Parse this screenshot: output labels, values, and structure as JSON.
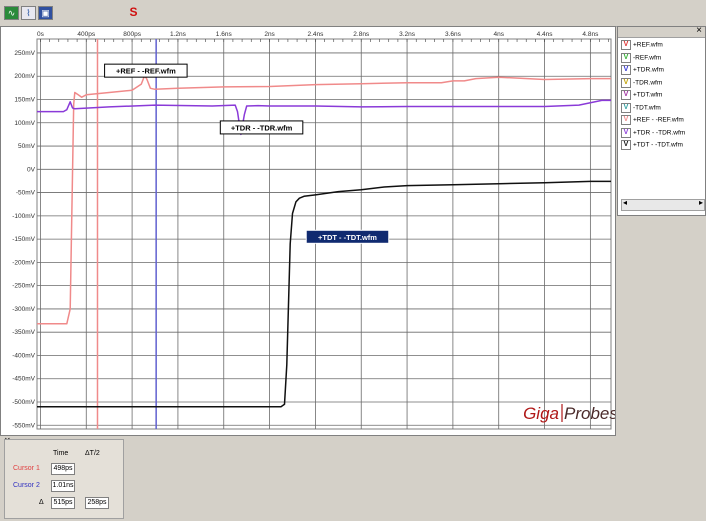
{
  "toolbar": {
    "icons": [
      "waveform-icon",
      "timebase-icon",
      "display-icon"
    ],
    "s_label": "S"
  },
  "chart_data": {
    "type": "line",
    "x_unit": "ps",
    "xlim": [
      -30,
      4980
    ],
    "ylim": [
      -558,
      280
    ],
    "x_ticks": [
      {
        "v": 0,
        "label": "0s"
      },
      {
        "v": 400,
        "label": "400ps"
      },
      {
        "v": 800,
        "label": "800ps"
      },
      {
        "v": 1200,
        "label": "1.2ns"
      },
      {
        "v": 1600,
        "label": "1.6ns"
      },
      {
        "v": 2000,
        "label": "2ns"
      },
      {
        "v": 2400,
        "label": "2.4ns"
      },
      {
        "v": 2800,
        "label": "2.8ns"
      },
      {
        "v": 3200,
        "label": "3.2ns"
      },
      {
        "v": 3600,
        "label": "3.6ns"
      },
      {
        "v": 4000,
        "label": "4ns"
      },
      {
        "v": 4400,
        "label": "4.4ns"
      },
      {
        "v": 4800,
        "label": "4.8ns"
      }
    ],
    "y_ticks": [
      {
        "v": 250,
        "label": "250mV"
      },
      {
        "v": 200,
        "label": "200mV"
      },
      {
        "v": 150,
        "label": "150mV"
      },
      {
        "v": 100,
        "label": "100mV"
      },
      {
        "v": 50,
        "label": "50mV"
      },
      {
        "v": 0,
        "label": "0V"
      },
      {
        "v": -50,
        "label": "-50mV"
      },
      {
        "v": -100,
        "label": "-100mV"
      },
      {
        "v": -150,
        "label": "-150mV"
      },
      {
        "v": -200,
        "label": "-200mV"
      },
      {
        "v": -250,
        "label": "-250mV"
      },
      {
        "v": -300,
        "label": "-300mV"
      },
      {
        "v": -350,
        "label": "-350mV"
      },
      {
        "v": -400,
        "label": "-400mV"
      },
      {
        "v": -450,
        "label": "-450mV"
      },
      {
        "v": -500,
        "label": "-500mV"
      },
      {
        "v": -550,
        "label": "-550mV"
      }
    ],
    "grid": true,
    "series": [
      {
        "name": "+REF - -REF.wfm",
        "color": "#f08a8a",
        "x": [
          -30,
          230,
          260,
          290,
          300,
          330,
          360,
          400,
          600,
          800,
          880,
          910,
          930,
          960,
          1000,
          1200,
          1600,
          2000,
          2400,
          2800,
          3200,
          3500,
          3600,
          3700,
          3800,
          4000,
          4400,
          4800,
          4980
        ],
        "y": [
          -332,
          -332,
          -300,
          140,
          165,
          160,
          155,
          160,
          165,
          170,
          183,
          202,
          193,
          174,
          172,
          174,
          177,
          178,
          182,
          184,
          186,
          186,
          190,
          190,
          195,
          198,
          193,
          195,
          195
        ]
      },
      {
        "name": "+TDR - -TDR.wfm",
        "color": "#8a3ad8",
        "x": [
          -30,
          200,
          230,
          260,
          280,
          300,
          600,
          1000,
          1500,
          1700,
          1720,
          1750,
          1780,
          1800,
          1900,
          2000,
          2400,
          2800,
          3200,
          3600,
          4000,
          4400,
          4700,
          4900,
          4980
        ],
        "y": [
          124,
          124,
          128,
          145,
          132,
          130,
          134,
          138,
          136,
          138,
          124,
          75,
          118,
          136,
          137,
          136,
          136,
          134,
          135,
          135,
          135,
          135,
          138,
          148,
          148
        ]
      },
      {
        "name": "+TDT - -TDT.wfm",
        "color": "#101010",
        "x": [
          -30,
          2100,
          2130,
          2150,
          2180,
          2200,
          2230,
          2260,
          2300,
          2400,
          2600,
          2800,
          3000,
          3200,
          3600,
          4000,
          4400,
          4800,
          4980
        ],
        "y": [
          -510,
          -510,
          -505,
          -420,
          -160,
          -95,
          -70,
          -62,
          -58,
          -55,
          -48,
          -44,
          -38,
          -35,
          -33,
          -31,
          -29,
          -26,
          -26
        ]
      }
    ],
    "cursors": [
      {
        "name": "Cursor 1",
        "x": 498,
        "color": "#f08a8a"
      },
      {
        "name": "Cursor 2",
        "x": 1010,
        "color": "#6060d0"
      }
    ],
    "annotations": [
      {
        "text": "+REF - -REF.wfm",
        "x": 920,
        "y": 212,
        "style": "outline"
      },
      {
        "text": "+TDR - -TDR.wfm",
        "x": 1930,
        "y": 90,
        "style": "outline"
      },
      {
        "text": "+TDT - -TDT.wfm",
        "x": 2680,
        "y": -145,
        "style": "filled"
      }
    ],
    "watermark": {
      "part1": "Giga",
      "part2": "Probes"
    }
  },
  "legend": {
    "items": [
      {
        "mark": "V",
        "label": "+REF.wfm",
        "color": "#e03030"
      },
      {
        "mark": "V",
        "label": "-REF.wfm",
        "color": "#30b030"
      },
      {
        "mark": "V",
        "label": "+TDR.wfm",
        "color": "#3030d0"
      },
      {
        "mark": "V",
        "label": "-TDR.wfm",
        "color": "#c0a000"
      },
      {
        "mark": "V",
        "label": "+TDT.wfm",
        "color": "#a030a0"
      },
      {
        "mark": "V",
        "label": "-TDT.wfm",
        "color": "#30a0a0"
      },
      {
        "mark": "V",
        "label": "+REF - -REF.wfm",
        "color": "#f08a8a"
      },
      {
        "mark": "V",
        "label": "+TDR - -TDR.wfm",
        "color": "#8a3ad8"
      },
      {
        "mark": "V",
        "label": "+TDT - -TDT.wfm",
        "color": "#101010"
      }
    ]
  },
  "cursor_panel": {
    "col_time": "Time",
    "col_delta": "ΔT/2",
    "cursor1_label": "Cursor 1",
    "cursor1_time": "498ps",
    "cursor2_label": "Cursor 2",
    "cursor2_time": "1.01ns",
    "delta_label": "Δ",
    "delta_time": "515ps",
    "delta_half": "258ps"
  }
}
